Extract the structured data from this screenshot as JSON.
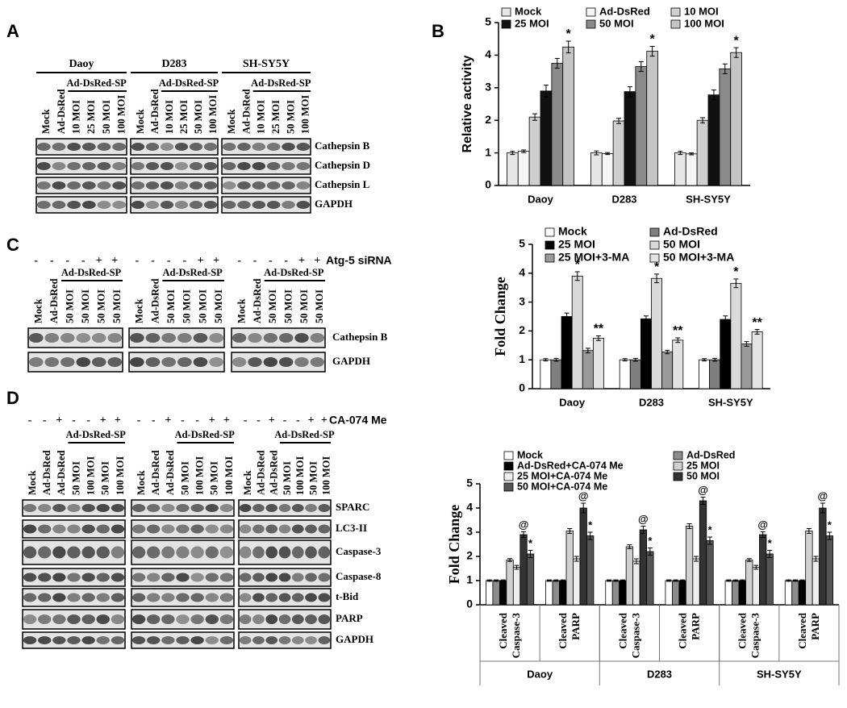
{
  "panel_labels": [
    "A",
    "B",
    "C",
    "D"
  ],
  "blot_a": {
    "groups": [
      "Daoy",
      "D283",
      "SH-SY5Y"
    ],
    "lanes": [
      "Mock",
      "Ad-DsRed",
      "10 MOI",
      "25 MOI",
      "50 MOI",
      "100 MOI"
    ],
    "bracket": "Ad-DsRed-SP",
    "rows": [
      "Cathepsin B",
      "Cathepsin D",
      "Cathepsin L",
      "GAPDH"
    ]
  },
  "blot_c": {
    "signs": [
      "-",
      "-",
      "-",
      "-",
      "+",
      "+"
    ],
    "treatment": "Atg-5 siRNA",
    "lanes": [
      "Mock",
      "Ad-DsRed",
      "50 MOI",
      "50 MOI",
      "50 MOI",
      "50 MOI"
    ],
    "bracket": "Ad-DsRed-SP",
    "rows": [
      "Cathepsin B",
      "GAPDH"
    ]
  },
  "blot_d": {
    "signs": [
      "-",
      "-",
      "+",
      "-",
      "-",
      "+",
      "+"
    ],
    "treatment": "CA-074 Me",
    "lanes": [
      "Mock",
      "Ad-DsRed",
      "Ad-DsRed",
      "50 MOI",
      "100 MOI",
      "50 MOI",
      "100 MOI"
    ],
    "bracket": "Ad-DsRed-SP",
    "rows": [
      "SPARC",
      "LC3-II",
      "Caspase-3",
      "Caspase-8",
      "t-Bid",
      "PARP",
      "GAPDH"
    ]
  },
  "chart_data": [
    {
      "type": "bar",
      "ylabel": "Relative activity",
      "categories": [
        "Daoy",
        "D283",
        "SH-SY5Y"
      ],
      "ylim": [
        0,
        5
      ],
      "yticks": [
        0,
        1,
        2,
        3,
        4,
        5
      ],
      "series": [
        {
          "name": "Mock",
          "color": "#e6e6e6",
          "values": [
            1.0,
            1.0,
            1.0
          ],
          "errors": [
            0.05,
            0.06,
            0.05
          ]
        },
        {
          "name": "Ad-DsRed",
          "color": "#f5f5f5",
          "values": [
            1.05,
            0.98,
            0.97
          ],
          "errors": [
            0.04,
            0.03,
            0.03
          ]
        },
        {
          "name": "10 MOI",
          "color": "#cfcfcf",
          "values": [
            2.1,
            1.98,
            2.0
          ],
          "errors": [
            0.1,
            0.08,
            0.08
          ]
        },
        {
          "name": "25 MOI",
          "color": "#111111",
          "values": [
            2.9,
            2.88,
            2.78
          ],
          "errors": [
            0.18,
            0.15,
            0.15
          ]
        },
        {
          "name": "50 MOI",
          "color": "#8a8a8a",
          "values": [
            3.75,
            3.65,
            3.58
          ],
          "errors": [
            0.15,
            0.15,
            0.15
          ]
        },
        {
          "name": "100 MOI",
          "color": "#c4c4c4",
          "values": [
            4.25,
            4.12,
            4.08
          ],
          "errors": [
            0.18,
            0.15,
            0.15
          ],
          "annotations": [
            "*",
            "*",
            "*"
          ]
        }
      ]
    },
    {
      "type": "bar",
      "ylabel": "Fold Change",
      "categories": [
        "Daoy",
        "D283",
        "SH-SY5Y"
      ],
      "ylim": [
        0,
        5
      ],
      "yticks": [
        0,
        1,
        2,
        3,
        4,
        5
      ],
      "series": [
        {
          "name": "Mock",
          "color": "#ffffff",
          "values": [
            1.0,
            1.0,
            1.0
          ],
          "errors": [
            0.04,
            0.04,
            0.04
          ]
        },
        {
          "name": "Ad-DsRed",
          "color": "#7f7f7f",
          "values": [
            1.0,
            1.0,
            1.0
          ],
          "errors": [
            0.05,
            0.05,
            0.05
          ]
        },
        {
          "name": "25 MOI",
          "color": "#000000",
          "values": [
            2.5,
            2.42,
            2.4
          ],
          "errors": [
            0.12,
            0.1,
            0.12
          ]
        },
        {
          "name": "50 MOI",
          "color": "#d9d9d9",
          "values": [
            3.9,
            3.82,
            3.65
          ],
          "errors": [
            0.15,
            0.15,
            0.15
          ],
          "annotations": [
            "*",
            "*",
            "*"
          ]
        },
        {
          "name": "25 MOI+3-MA",
          "color": "#9a9a9a",
          "values": [
            1.32,
            1.27,
            1.55
          ],
          "errors": [
            0.08,
            0.06,
            0.08
          ]
        },
        {
          "name": "50 MOI+3-MA",
          "color": "#e3e3e3",
          "values": [
            1.75,
            1.68,
            1.97
          ],
          "errors": [
            0.08,
            0.08,
            0.08
          ],
          "annotations": [
            "**",
            "**",
            "**"
          ]
        }
      ]
    },
    {
      "type": "bar",
      "ylabel": "Fold Change",
      "categories": [
        [
          "Cleaved",
          "Caspase-3"
        ],
        [
          "Cleaved",
          "PARP"
        ],
        [
          "Cleaved",
          "Caspase-3"
        ],
        [
          "Cleaved",
          "PARP"
        ],
        [
          "Cleaved",
          "Caspase-3"
        ],
        [
          "Cleaved",
          "PARP"
        ]
      ],
      "groups": [
        "Daoy",
        "D283",
        "SH-SY5Y"
      ],
      "ylim": [
        0,
        5
      ],
      "yticks": [
        0,
        1,
        2,
        3,
        4,
        5
      ],
      "series": [
        {
          "name": "Mock",
          "color": "#ffffff",
          "values": [
            1.0,
            1.0,
            1.0,
            1.0,
            1.0,
            1.0
          ],
          "errors": [
            0.03,
            0.03,
            0.03,
            0.03,
            0.03,
            0.03
          ]
        },
        {
          "name": "Ad-DsRed",
          "color": "#8c8c8c",
          "values": [
            1.0,
            1.0,
            1.0,
            1.0,
            1.0,
            1.0
          ],
          "errors": [
            0.03,
            0.03,
            0.03,
            0.03,
            0.03,
            0.03
          ]
        },
        {
          "name": "Ad-DsRed+CA-074 Me",
          "color": "#000000",
          "values": [
            1.0,
            1.0,
            1.0,
            1.0,
            1.0,
            1.0
          ],
          "errors": [
            0.03,
            0.03,
            0.03,
            0.03,
            0.03,
            0.03
          ]
        },
        {
          "name": "25 MOI",
          "color": "#d0d0d0",
          "values": [
            1.85,
            3.05,
            2.4,
            3.25,
            1.85,
            3.05
          ],
          "errors": [
            0.06,
            0.1,
            0.08,
            0.1,
            0.06,
            0.1
          ]
        },
        {
          "name": "25 MOI+CA-074 Me",
          "color": "#eeeeee",
          "values": [
            1.55,
            1.9,
            1.8,
            1.9,
            1.55,
            1.9
          ],
          "errors": [
            0.08,
            0.1,
            0.1,
            0.1,
            0.08,
            0.1
          ]
        },
        {
          "name": "50 MOI",
          "color": "#333333",
          "values": [
            2.9,
            4.0,
            3.1,
            4.3,
            2.9,
            4.0
          ],
          "errors": [
            0.12,
            0.2,
            0.15,
            0.15,
            0.12,
            0.2
          ],
          "annotations": [
            "@",
            "@",
            "@",
            "@",
            "@",
            "@"
          ]
        },
        {
          "name": "50 MOI+CA-074 Me",
          "color": "#555555",
          "values": [
            2.1,
            2.85,
            2.2,
            2.65,
            2.1,
            2.85
          ],
          "errors": [
            0.15,
            0.15,
            0.15,
            0.15,
            0.15,
            0.15
          ],
          "annotations": [
            "*",
            "*",
            "*",
            "*",
            "*",
            "*"
          ]
        }
      ]
    }
  ]
}
